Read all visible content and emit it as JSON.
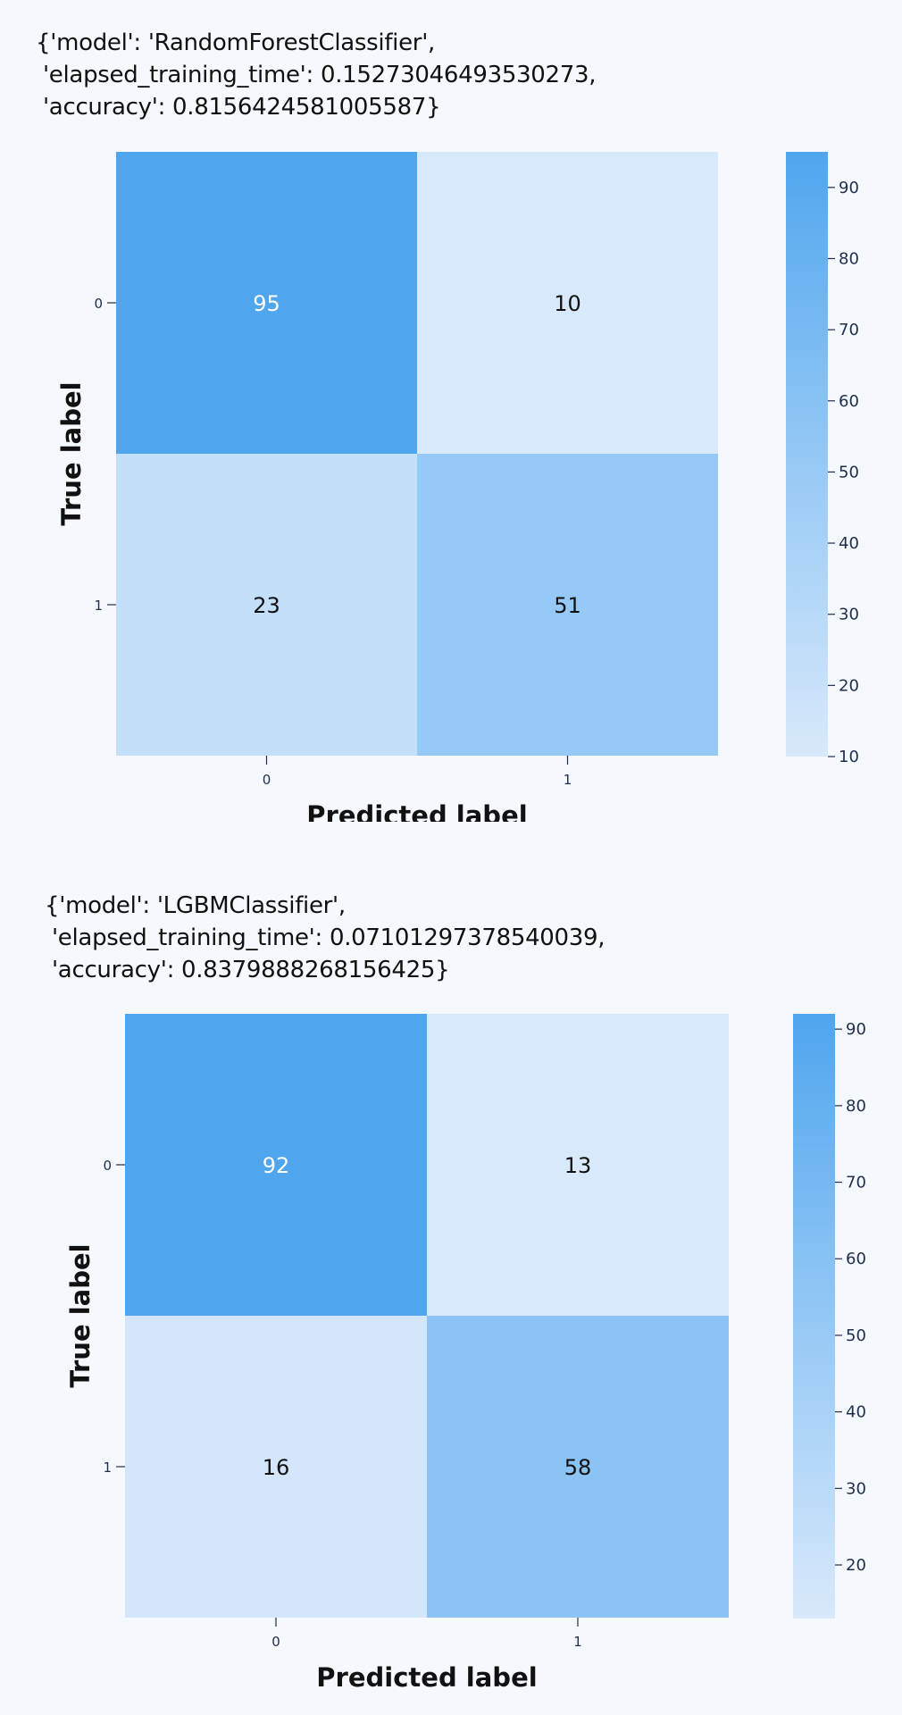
{
  "colors": {
    "background": "#f5f8fc",
    "low": "#d8e9fb",
    "high": "#4fa6ee",
    "dark_text": "#111111",
    "light_text": "#ffffff",
    "tick_text": "#1f2e4d"
  },
  "charts": [
    {
      "info_text": "{'model': 'RandomForestClassifier',\n 'elapsed_training_time': 0.15273046493530273,\n 'accuracy': 0.8156424581005587}"
    },
    {
      "info_text": "{'model': 'LGBMClassifier',\n 'elapsed_training_time': 0.07101297378540039,\n 'accuracy': 0.8379888268156425}"
    }
  ],
  "chart_data": [
    {
      "type": "heatmap",
      "title": "{'model': 'RandomForestClassifier', 'elapsed_training_time': 0.15273046493530273, 'accuracy': 0.8156424581005587}",
      "xlabel": "Predicted label",
      "ylabel": "True label",
      "x_categories": [
        "0",
        "1"
      ],
      "y_categories": [
        "0",
        "1"
      ],
      "values": [
        [
          95,
          10
        ],
        [
          23,
          51
        ]
      ],
      "colorbar": {
        "min": 10,
        "max": 95,
        "ticks": [
          10,
          20,
          30,
          40,
          50,
          60,
          70,
          80,
          90
        ]
      },
      "grid": false
    },
    {
      "type": "heatmap",
      "title": "{'model': 'LGBMClassifier', 'elapsed_training_time': 0.07101297378540039, 'accuracy': 0.8379888268156425}",
      "xlabel": "Predicted label",
      "ylabel": "True label",
      "x_categories": [
        "0",
        "1"
      ],
      "y_categories": [
        "0",
        "1"
      ],
      "values": [
        [
          92,
          13
        ],
        [
          16,
          58
        ]
      ],
      "colorbar": {
        "min": 13,
        "max": 92,
        "ticks": [
          20,
          30,
          40,
          50,
          60,
          70,
          80,
          90
        ]
      },
      "grid": false
    }
  ]
}
